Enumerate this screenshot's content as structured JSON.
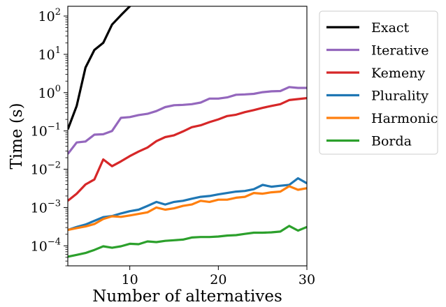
{
  "chart_data": {
    "type": "line",
    "xlabel": "Number of alternatives",
    "ylabel": "Time (s)",
    "xlim": [
      3,
      30
    ],
    "ylim": [
      3e-05,
      180
    ],
    "y_scale": "log",
    "grid": false,
    "legend_placement": "outside-right",
    "x_ticks": [
      10,
      20,
      30
    ],
    "y_ticks": [
      {
        "value": 0.0001,
        "base": "10",
        "exp": "−4"
      },
      {
        "value": 0.001,
        "base": "10",
        "exp": "−3"
      },
      {
        "value": 0.01,
        "base": "10",
        "exp": "−2"
      },
      {
        "value": 0.1,
        "base": "10",
        "exp": "−1"
      },
      {
        "value": 1,
        "base": "10",
        "exp": "0"
      },
      {
        "value": 10,
        "base": "10",
        "exp": "1"
      },
      {
        "value": 100,
        "base": "10",
        "exp": "2"
      }
    ],
    "series": [
      {
        "name": "Exact",
        "color": "#000000",
        "x": [
          3,
          4,
          5,
          6,
          7,
          8,
          9,
          10,
          11
        ],
        "values": [
          0.11,
          0.45,
          4.5,
          13,
          20,
          60,
          105,
          180,
          300
        ]
      },
      {
        "name": "Iterative",
        "color": "#9467bd",
        "x": [
          3,
          4,
          5,
          6,
          7,
          8,
          9,
          10,
          11,
          12,
          13,
          14,
          15,
          16,
          17,
          18,
          19,
          20,
          21,
          22,
          23,
          24,
          25,
          26,
          27,
          28,
          29,
          30
        ],
        "values": [
          0.025,
          0.05,
          0.053,
          0.08,
          0.082,
          0.1,
          0.22,
          0.23,
          0.26,
          0.28,
          0.33,
          0.42,
          0.47,
          0.48,
          0.5,
          0.55,
          0.7,
          0.7,
          0.75,
          0.88,
          0.9,
          0.93,
          1.03,
          1.08,
          1.1,
          1.4,
          1.33,
          1.33
        ]
      },
      {
        "name": "Kemeny",
        "color": "#d62728",
        "x": [
          3,
          4,
          5,
          6,
          7,
          8,
          9,
          10,
          11,
          12,
          13,
          14,
          15,
          16,
          17,
          18,
          19,
          20,
          21,
          22,
          23,
          24,
          25,
          26,
          27,
          28,
          29,
          30
        ],
        "values": [
          0.0015,
          0.0023,
          0.004,
          0.0054,
          0.018,
          0.012,
          0.016,
          0.022,
          0.029,
          0.037,
          0.054,
          0.069,
          0.077,
          0.097,
          0.125,
          0.14,
          0.17,
          0.2,
          0.245,
          0.265,
          0.31,
          0.35,
          0.4,
          0.45,
          0.5,
          0.64,
          0.68,
          0.72
        ]
      },
      {
        "name": "Plurality",
        "color": "#1f77b4",
        "x": [
          3,
          4,
          5,
          6,
          7,
          8,
          9,
          10,
          11,
          12,
          13,
          14,
          15,
          16,
          17,
          18,
          19,
          20,
          21,
          22,
          23,
          24,
          25,
          26,
          27,
          28,
          29,
          30
        ],
        "values": [
          0.00026,
          0.00031,
          0.00036,
          0.00045,
          0.00056,
          0.0006,
          0.0007,
          0.0008,
          0.00088,
          0.0011,
          0.0014,
          0.0012,
          0.0014,
          0.0015,
          0.0017,
          0.0019,
          0.002,
          0.0022,
          0.0024,
          0.0026,
          0.0027,
          0.003,
          0.0039,
          0.0035,
          0.0037,
          0.0039,
          0.0058,
          0.0043
        ]
      },
      {
        "name": "Harmonic",
        "color": "#ff7f0e",
        "x": [
          3,
          4,
          5,
          6,
          7,
          8,
          9,
          10,
          11,
          12,
          13,
          14,
          15,
          16,
          17,
          18,
          19,
          20,
          21,
          22,
          23,
          24,
          25,
          26,
          27,
          28,
          29,
          30
        ],
        "values": [
          0.00026,
          0.00029,
          0.00032,
          0.00037,
          0.0005,
          0.00059,
          0.00057,
          0.00062,
          0.00068,
          0.00075,
          0.001,
          0.00088,
          0.00095,
          0.0011,
          0.0012,
          0.0015,
          0.0014,
          0.0016,
          0.0016,
          0.0018,
          0.0019,
          0.0024,
          0.0023,
          0.0025,
          0.0026,
          0.0036,
          0.0029,
          0.0032
        ]
      },
      {
        "name": "Borda",
        "color": "#2ca02c",
        "x": [
          3,
          4,
          5,
          6,
          7,
          8,
          9,
          10,
          11,
          12,
          13,
          14,
          15,
          16,
          17,
          18,
          19,
          20,
          21,
          22,
          23,
          24,
          25,
          26,
          27,
          28,
          29,
          30
        ],
        "values": [
          5.2e-05,
          5.8e-05,
          6.5e-05,
          7.8e-05,
          9.7e-05,
          8.9e-05,
          9.7e-05,
          0.000113,
          0.00011,
          0.00013,
          0.000125,
          0.000135,
          0.00014,
          0.000145,
          0.000165,
          0.00017,
          0.00017,
          0.000175,
          0.000185,
          0.00019,
          0.000205,
          0.00022,
          0.00022,
          0.000225,
          0.000235,
          0.00033,
          0.00025,
          0.00031
        ]
      }
    ]
  }
}
